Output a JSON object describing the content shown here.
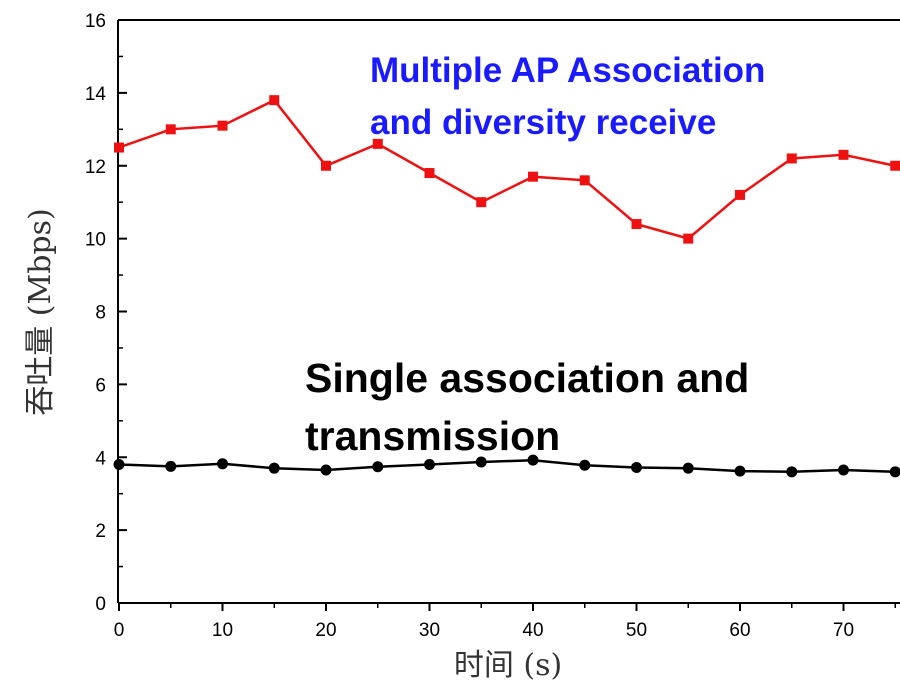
{
  "chart_data": {
    "type": "line",
    "title": "",
    "xlabel": "时间 (s)",
    "ylabel": "吞吐量 (Mbps)",
    "xlim": [
      0,
      75
    ],
    "ylim": [
      0,
      16
    ],
    "x_ticks": [
      0,
      10,
      20,
      30,
      40,
      50,
      60,
      70
    ],
    "y_ticks": [
      0,
      2,
      4,
      6,
      8,
      10,
      12,
      14,
      16
    ],
    "grid": false,
    "legend": "none",
    "x": [
      0,
      5,
      10,
      15,
      20,
      25,
      30,
      35,
      40,
      45,
      50,
      55,
      60,
      65,
      70,
      75
    ],
    "series": [
      {
        "color": "#ee1111",
        "marker": "square",
        "values": [
          12.5,
          13.0,
          13.1,
          13.8,
          12.0,
          12.6,
          11.8,
          11.0,
          11.7,
          11.6,
          10.4,
          10.0,
          11.2,
          12.2,
          12.3,
          12.0
        ]
      },
      {
        "color": "#000000",
        "marker": "circle",
        "values": [
          3.8,
          3.75,
          3.82,
          3.7,
          3.65,
          3.74,
          3.8,
          3.87,
          3.92,
          3.78,
          3.72,
          3.7,
          3.62,
          3.6,
          3.65,
          3.6
        ]
      }
    ],
    "annotations": [
      {
        "lines": [
          "Multiple AP Association",
          "and diversity receive"
        ],
        "color": "#1a1aff",
        "near_series": 0
      },
      {
        "lines": [
          "Single association and",
          "transmission"
        ],
        "color": "#000000",
        "near_series": 1
      }
    ]
  }
}
